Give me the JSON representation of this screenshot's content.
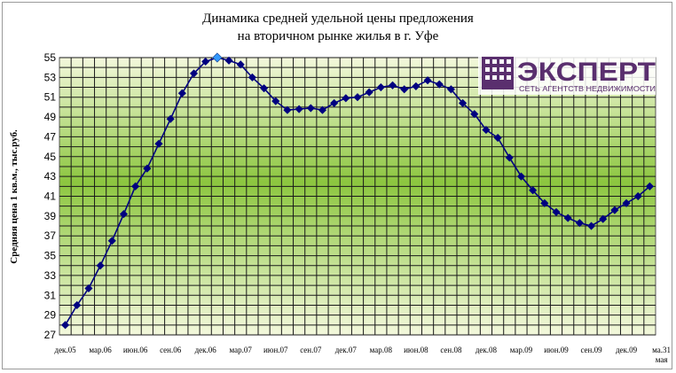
{
  "logo": {
    "word": "ЭКСПЕРТ",
    "tagline": "СЕТЬ АГЕНТСТВ НЕДВИЖИМОСТИ",
    "color": "#5a2f6e"
  },
  "chart_data": {
    "type": "line",
    "title": [
      "Динамика средней удельной цены предложения",
      "на вторичном рынке жилья в г. Уфе"
    ],
    "ylabel": "Средняя цена 1 кв.м., тыс.руб.",
    "xlabel": "",
    "ylim": [
      27,
      55
    ],
    "yticks": [
      27,
      29,
      31,
      33,
      35,
      37,
      39,
      41,
      43,
      45,
      47,
      49,
      51,
      53,
      55
    ],
    "grid": true,
    "x_tick_labels": [
      {
        "i": 0,
        "label": "дек.05"
      },
      {
        "i": 3,
        "label": "мар.06"
      },
      {
        "i": 6,
        "label": "июн.06"
      },
      {
        "i": 9,
        "label": "сен.06"
      },
      {
        "i": 12,
        "label": "дек.06"
      },
      {
        "i": 15,
        "label": "мар.07"
      },
      {
        "i": 18,
        "label": "июн.07"
      },
      {
        "i": 21,
        "label": "сен.07"
      },
      {
        "i": 24,
        "label": "дек.07"
      },
      {
        "i": 27,
        "label": "мар.08"
      },
      {
        "i": 30,
        "label": "июн.08"
      },
      {
        "i": 33,
        "label": "сен.08"
      },
      {
        "i": 36,
        "label": "дек.08"
      },
      {
        "i": 39,
        "label": "мар.09"
      },
      {
        "i": 42,
        "label": "июн.09"
      },
      {
        "i": 45,
        "label": "сен.09"
      },
      {
        "i": 48,
        "label": "дек.09"
      },
      {
        "i": 51,
        "label": "ма.31 мая"
      }
    ],
    "highlight_index": 13,
    "series": [
      {
        "color": "#000080",
        "highlight_color": "#3399ff",
        "values": [
          28.0,
          30.0,
          31.7,
          34.0,
          36.5,
          39.2,
          42.0,
          43.8,
          46.3,
          48.8,
          51.4,
          53.4,
          54.6,
          55.0,
          54.7,
          54.3,
          53.0,
          51.9,
          50.6,
          49.7,
          49.8,
          49.9,
          49.7,
          50.4,
          50.9,
          51.0,
          51.5,
          52.0,
          52.2,
          51.8,
          52.1,
          52.7,
          52.3,
          51.8,
          50.4,
          49.3,
          47.7,
          46.9,
          44.9,
          43.0,
          41.6,
          40.3,
          39.4,
          38.8,
          38.3,
          38.0,
          38.7,
          39.6,
          40.3,
          41.0,
          42.0
        ]
      }
    ]
  }
}
